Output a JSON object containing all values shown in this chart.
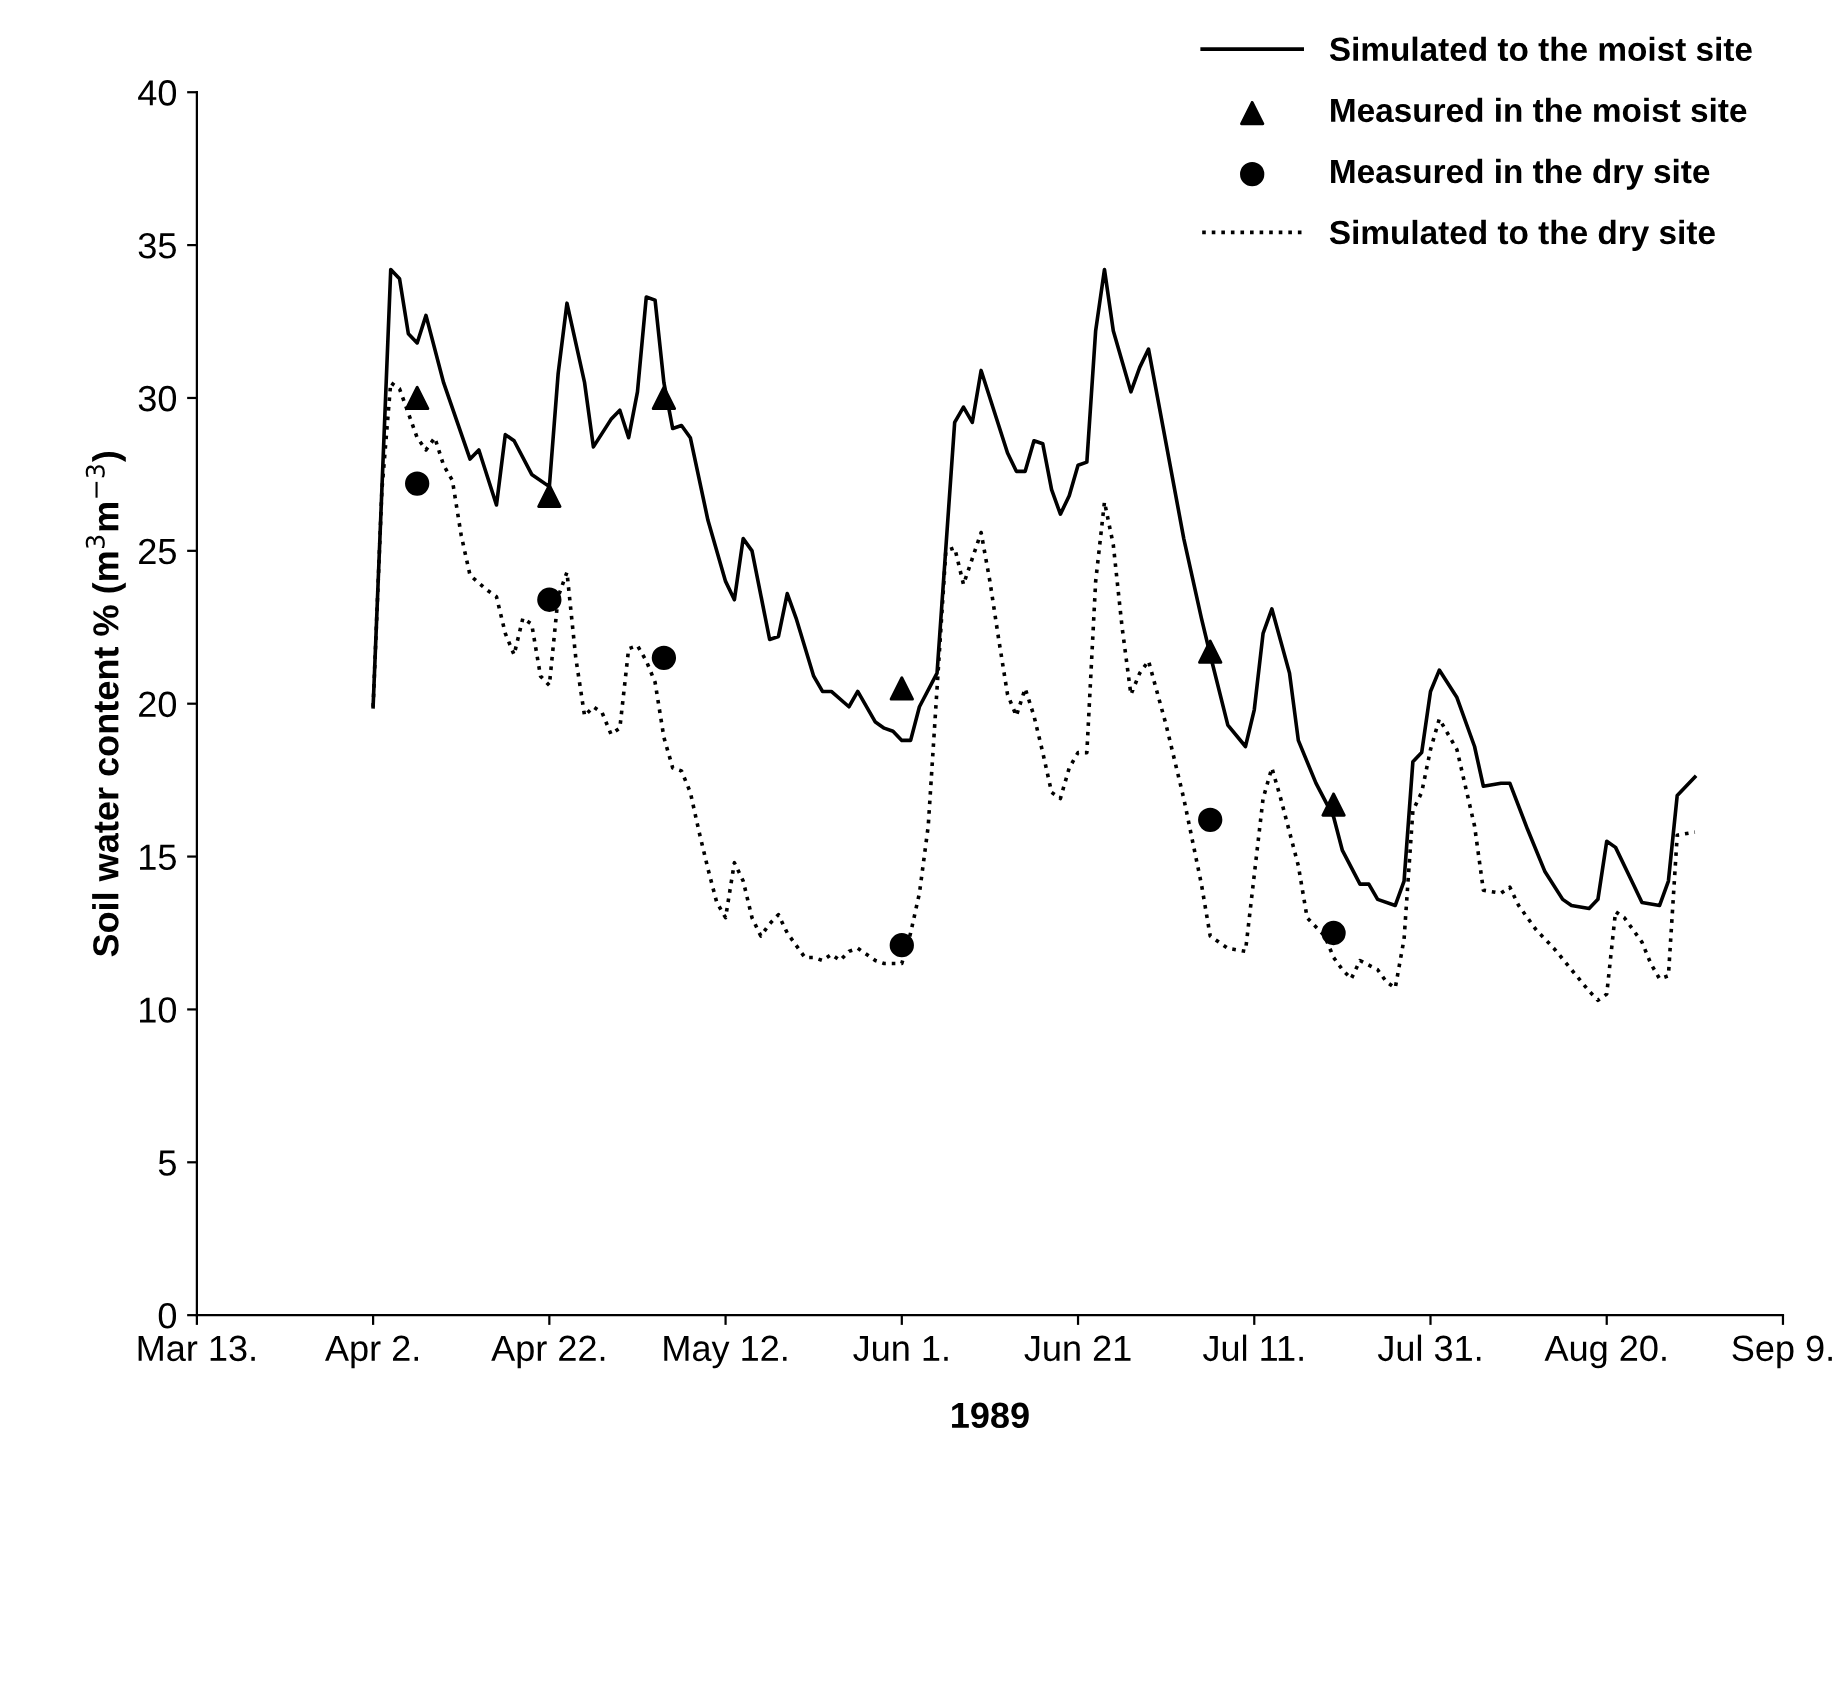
{
  "chart_data": {
    "type": "line",
    "xlabel": "1989",
    "ylabel": "Soil water content % (m$^{3}$m$^{−3}$)",
    "xlim": [
      "1989-03-13",
      "1989-09-09"
    ],
    "xticks": [
      {
        "value": "1989-03-13",
        "label": "Mar 13."
      },
      {
        "value": "1989-04-02",
        "label": "Apr 2."
      },
      {
        "value": "1989-04-22",
        "label": "Apr 22."
      },
      {
        "value": "1989-05-12",
        "label": "May 12."
      },
      {
        "value": "1989-06-01",
        "label": "Jun 1."
      },
      {
        "value": "1989-06-21",
        "label": "Jun 21"
      },
      {
        "value": "1989-07-11",
        "label": "Jul 11."
      },
      {
        "value": "1989-07-31",
        "label": "Jul 31."
      },
      {
        "value": "1989-08-20",
        "label": "Aug 20."
      },
      {
        "value": "1989-09-09",
        "label": "Sep 9."
      }
    ],
    "ylim": [
      0,
      40
    ],
    "yticks": [
      0,
      5,
      10,
      15,
      20,
      25,
      30,
      35,
      40
    ],
    "grid": false,
    "legend": "top right",
    "series": [
      {
        "name": "Simulated to the moist site",
        "line_style": "solid",
        "marker": "none",
        "color": "#000000",
        "x": [
          "1989-04-02",
          "1989-04-04",
          "1989-04-05",
          "1989-04-06",
          "1989-04-07",
          "1989-04-08",
          "1989-04-10",
          "1989-04-13",
          "1989-04-14",
          "1989-04-16",
          "1989-04-17",
          "1989-04-18",
          "1989-04-20",
          "1989-04-22",
          "1989-04-23",
          "1989-04-24",
          "1989-04-26",
          "1989-04-27",
          "1989-04-29",
          "1989-04-30",
          "1989-05-01",
          "1989-05-02",
          "1989-05-03",
          "1989-05-04",
          "1989-05-05",
          "1989-05-06",
          "1989-05-07",
          "1989-05-08",
          "1989-05-10",
          "1989-05-12",
          "1989-05-13",
          "1989-05-14",
          "1989-05-15",
          "1989-05-17",
          "1989-05-18",
          "1989-05-19",
          "1989-05-20",
          "1989-05-22",
          "1989-05-23",
          "1989-05-24",
          "1989-05-26",
          "1989-05-27",
          "1989-05-29",
          "1989-05-30",
          "1989-05-31",
          "1989-06-01",
          "1989-06-02",
          "1989-06-03",
          "1989-06-05",
          "1989-06-07",
          "1989-06-08",
          "1989-06-09",
          "1989-06-10",
          "1989-06-11",
          "1989-06-13",
          "1989-06-14",
          "1989-06-15",
          "1989-06-16",
          "1989-06-17",
          "1989-06-18",
          "1989-06-19",
          "1989-06-20",
          "1989-06-21",
          "1989-06-22",
          "1989-06-23",
          "1989-06-24",
          "1989-06-25",
          "1989-06-27",
          "1989-06-28",
          "1989-06-29",
          "1989-07-01",
          "1989-07-03",
          "1989-07-05",
          "1989-07-06",
          "1989-07-08",
          "1989-07-10",
          "1989-07-11",
          "1989-07-12",
          "1989-07-13",
          "1989-07-15",
          "1989-07-16",
          "1989-07-18",
          "1989-07-20",
          "1989-07-21",
          "1989-07-23",
          "1989-07-24",
          "1989-07-25",
          "1989-07-27",
          "1989-07-28",
          "1989-07-29",
          "1989-07-30",
          "1989-07-31",
          "1989-08-01",
          "1989-08-03",
          "1989-08-05",
          "1989-08-06",
          "1989-08-08",
          "1989-08-09",
          "1989-08-11",
          "1989-08-13",
          "1989-08-15",
          "1989-08-16",
          "1989-08-18",
          "1989-08-19",
          "1989-08-20",
          "1989-08-21",
          "1989-08-23",
          "1989-08-24",
          "1989-08-26",
          "1989-08-27",
          "1989-08-28",
          "1989-08-30"
        ],
        "values": [
          19.9,
          34.2,
          33.9,
          32.1,
          31.8,
          32.7,
          30.5,
          28.0,
          28.3,
          26.5,
          28.8,
          28.6,
          27.5,
          27.1,
          30.8,
          33.1,
          30.5,
          28.4,
          29.3,
          29.6,
          28.7,
          30.2,
          33.3,
          33.2,
          30.5,
          29.0,
          29.1,
          28.7,
          26.0,
          24.0,
          23.4,
          25.4,
          25.0,
          22.1,
          22.2,
          23.6,
          22.8,
          20.9,
          20.4,
          20.4,
          19.9,
          20.4,
          19.4,
          19.2,
          19.1,
          18.8,
          18.8,
          19.9,
          21.0,
          29.2,
          29.7,
          29.2,
          30.9,
          30.0,
          28.2,
          27.6,
          27.6,
          28.6,
          28.5,
          27.0,
          26.2,
          26.8,
          27.8,
          27.9,
          32.2,
          34.2,
          32.2,
          30.2,
          31.0,
          31.6,
          28.5,
          25.4,
          22.8,
          21.6,
          19.3,
          18.6,
          19.8,
          22.3,
          23.1,
          21.0,
          18.8,
          17.4,
          16.3,
          15.2,
          14.1,
          14.1,
          13.6,
          13.4,
          14.2,
          18.1,
          18.4,
          20.4,
          21.1,
          20.2,
          18.6,
          17.3,
          17.4,
          17.4,
          15.9,
          14.5,
          13.6,
          13.4,
          13.3,
          13.6,
          15.5,
          15.3,
          14.1,
          13.5,
          13.4,
          14.2,
          17.0,
          17.6
        ]
      },
      {
        "name": "Measured in the moist site",
        "type": "scatter",
        "marker": "triangle",
        "color": "#000000",
        "x": [
          "1989-04-07",
          "1989-04-22",
          "1989-05-05",
          "1989-06-01",
          "1989-07-06",
          "1989-07-20"
        ],
        "values": [
          30.0,
          26.8,
          30.0,
          20.5,
          21.7,
          16.7
        ]
      },
      {
        "name": "Measured in the dry site",
        "type": "scatter",
        "marker": "circle",
        "color": "#000000",
        "x": [
          "1989-04-07",
          "1989-04-22",
          "1989-05-05",
          "1989-06-01",
          "1989-07-06",
          "1989-07-20"
        ],
        "values": [
          27.2,
          23.4,
          21.5,
          12.1,
          16.2,
          12.5
        ]
      },
      {
        "name": "Simulated to the dry site",
        "line_style": "dotted",
        "marker": "none",
        "color": "#000000",
        "x": [
          "1989-04-02",
          "1989-04-03",
          "1989-04-04",
          "1989-04-05",
          "1989-04-06",
          "1989-04-07",
          "1989-04-08",
          "1989-04-09",
          "1989-04-10",
          "1989-04-11",
          "1989-04-12",
          "1989-04-13",
          "1989-04-15",
          "1989-04-16",
          "1989-04-17",
          "1989-04-18",
          "1989-04-19",
          "1989-04-20",
          "1989-04-21",
          "1989-04-22",
          "1989-04-23",
          "1989-04-24",
          "1989-04-25",
          "1989-04-26",
          "1989-04-27",
          "1989-04-28",
          "1989-04-29",
          "1989-04-30",
          "1989-05-01",
          "1989-05-02",
          "1989-05-03",
          "1989-05-04",
          "1989-05-05",
          "1989-05-06",
          "1989-05-07",
          "1989-05-08",
          "1989-05-09",
          "1989-05-10",
          "1989-05-11",
          "1989-05-12",
          "1989-05-13",
          "1989-05-14",
          "1989-05-15",
          "1989-05-16",
          "1989-05-17",
          "1989-05-18",
          "1989-05-19",
          "1989-05-20",
          "1989-05-21",
          "1989-05-22",
          "1989-05-23",
          "1989-05-24",
          "1989-05-25",
          "1989-05-26",
          "1989-05-27",
          "1989-05-29",
          "1989-05-30",
          "1989-05-31",
          "1989-06-01",
          "1989-06-02",
          "1989-06-03",
          "1989-06-04",
          "1989-06-05",
          "1989-06-06",
          "1989-06-07",
          "1989-06-08",
          "1989-06-10",
          "1989-06-11",
          "1989-06-12",
          "1989-06-13",
          "1989-06-14",
          "1989-06-15",
          "1989-06-16",
          "1989-06-17",
          "1989-06-18",
          "1989-06-19",
          "1989-06-20",
          "1989-06-21",
          "1989-06-22",
          "1989-06-23",
          "1989-06-24",
          "1989-06-25",
          "1989-06-26",
          "1989-06-27",
          "1989-06-28",
          "1989-06-29",
          "1989-07-01",
          "1989-07-03",
          "1989-07-05",
          "1989-07-06",
          "1989-07-08",
          "1989-07-10",
          "1989-07-11",
          "1989-07-12",
          "1989-07-13",
          "1989-07-14",
          "1989-07-16",
          "1989-07-17",
          "1989-07-19",
          "1989-07-20",
          "1989-07-21",
          "1989-07-22",
          "1989-07-23",
          "1989-07-25",
          "1989-07-26",
          "1989-07-27",
          "1989-07-28",
          "1989-07-29",
          "1989-07-30",
          "1989-07-31",
          "1989-08-01",
          "1989-08-03",
          "1989-08-05",
          "1989-08-06",
          "1989-08-08",
          "1989-08-09",
          "1989-08-10",
          "1989-08-12",
          "1989-08-14",
          "1989-08-16",
          "1989-08-18",
          "1989-08-19",
          "1989-08-20",
          "1989-08-21",
          "1989-08-22",
          "1989-08-24",
          "1989-08-25",
          "1989-08-26",
          "1989-08-27",
          "1989-08-28",
          "1989-08-30"
        ],
        "values": [
          19.9,
          27.0,
          30.5,
          30.3,
          29.5,
          28.7,
          28.3,
          28.7,
          27.8,
          27.3,
          25.5,
          24.2,
          23.7,
          23.5,
          22.3,
          21.6,
          22.8,
          22.6,
          20.9,
          20.6,
          23.5,
          24.3,
          21.5,
          19.6,
          19.9,
          19.7,
          19.0,
          19.2,
          21.8,
          21.9,
          21.4,
          20.7,
          18.9,
          17.9,
          17.8,
          17.1,
          15.8,
          14.6,
          13.5,
          13.0,
          14.8,
          14.2,
          13.0,
          12.4,
          12.8,
          13.1,
          12.5,
          12.1,
          11.7,
          11.7,
          11.6,
          11.8,
          11.6,
          11.9,
          12.0,
          11.6,
          11.5,
          11.5,
          11.5,
          12.5,
          13.8,
          16.0,
          20.5,
          25.0,
          25.1,
          23.9,
          25.6,
          24.0,
          22.1,
          20.3,
          19.6,
          20.5,
          19.6,
          18.4,
          17.1,
          16.9,
          17.9,
          18.4,
          18.4,
          24.0,
          26.6,
          25.2,
          22.5,
          20.3,
          21.0,
          21.4,
          19.3,
          16.9,
          14.1,
          12.4,
          12.0,
          11.9,
          14.4,
          16.9,
          17.9,
          16.9,
          14.7,
          13.0,
          12.4,
          11.7,
          11.3,
          11.0,
          11.6,
          11.3,
          10.9,
          10.7,
          12.3,
          16.5,
          17.1,
          18.5,
          19.5,
          18.5,
          16.0,
          13.9,
          13.8,
          14.0,
          13.4,
          12.6,
          12.0,
          11.3,
          10.6,
          10.3,
          10.5,
          13.2,
          13.0,
          12.2,
          11.5,
          11.0,
          11.1,
          15.7,
          15.8
        ]
      }
    ]
  }
}
